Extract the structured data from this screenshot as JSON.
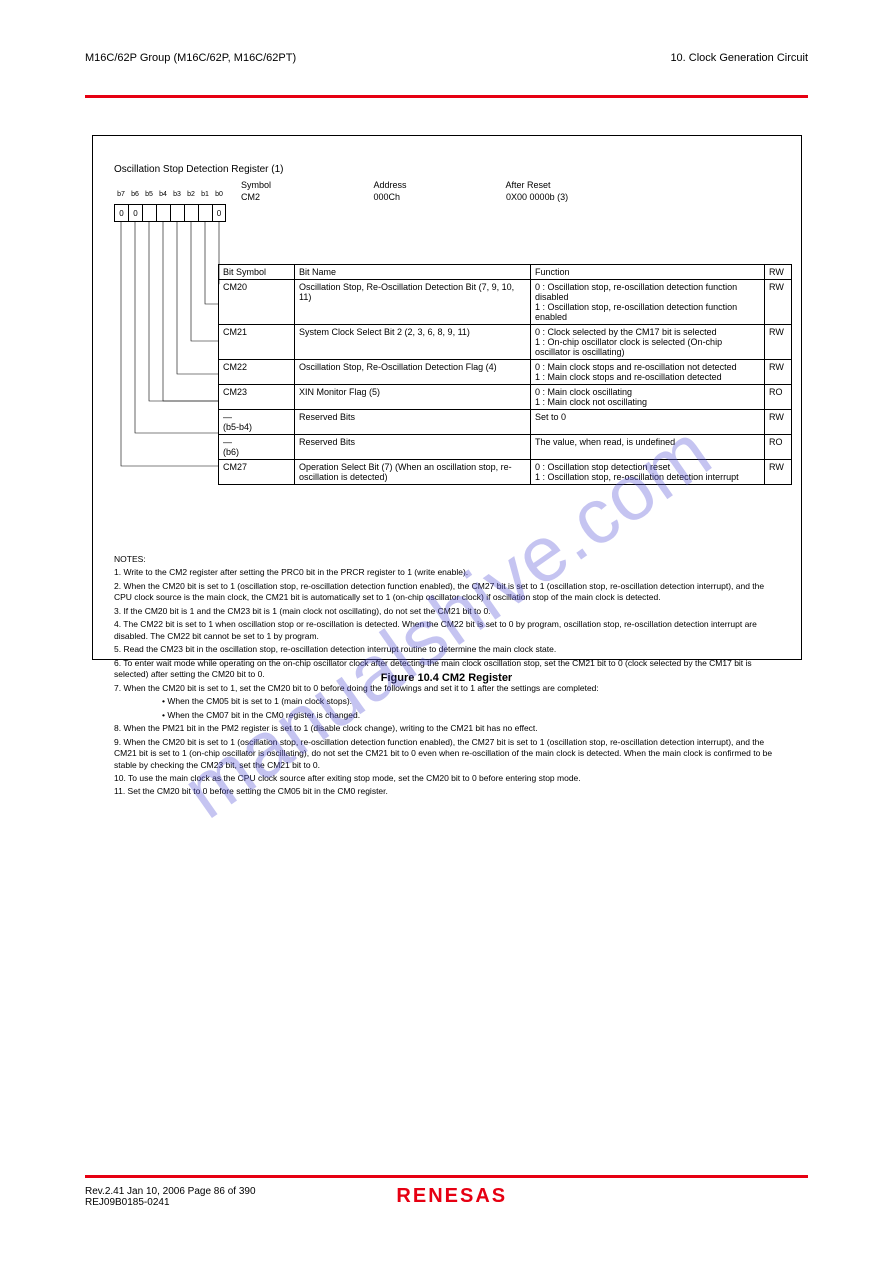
{
  "header": {
    "left": "M16C/62P Group (M16C/62P, M16C/62PT)",
    "right": "10. Clock Generation Circuit"
  },
  "colors": {
    "accent": "#e60012",
    "watermark": "rgba(88,86,214,0.35)",
    "border": "#000000",
    "bg": "#ffffff"
  },
  "watermark": "manualshive.com",
  "register": {
    "title": "Oscillation Stop Detection Register (1)",
    "bit_labels": [
      "b7",
      "b6",
      "b5",
      "b4",
      "b3",
      "b2",
      "b1",
      "b0"
    ],
    "bit_defaults": [
      "0",
      "0",
      "",
      "",
      "",
      "",
      "",
      "0"
    ],
    "header_row": {
      "symbol": "Symbol",
      "address": "Address",
      "after_reset": "After Reset",
      "symbol_val": "CM2",
      "address_val": "000Ch",
      "after_reset_val": "0X00 0000b (3)"
    },
    "columns": [
      "Bit Symbol",
      "Bit Name",
      "Function",
      "RW"
    ],
    "rows": [
      {
        "symbol": "CM20",
        "name": "Oscillation Stop, Re-Oscillation Detection Bit (7, 9, 10, 11)",
        "func": "0 : Oscillation stop, re-oscillation detection function disabled\n1 : Oscillation stop, re-oscillation detection function enabled",
        "rw": "RW"
      },
      {
        "symbol": "CM21",
        "name": "System Clock Select Bit 2 (2, 3, 6, 8, 9, 11)",
        "func": "0 : Clock selected by the CM17 bit is selected\n1 : On-chip oscillator clock is selected (On-chip oscillator is oscillating)",
        "rw": "RW"
      },
      {
        "symbol": "CM22",
        "name": "Oscillation Stop, Re-Oscillation Detection Flag (4)",
        "func": "0 : Main clock stops and re-oscillation not detected\n1 : Main clock stops and re-oscillation detected",
        "rw": "RW"
      },
      {
        "symbol": "CM23",
        "name": "XIN Monitor Flag (5)",
        "func": "0 : Main clock oscillating\n1 : Main clock not oscillating",
        "rw": "RO"
      },
      {
        "symbol": "—\n(b5-b4)",
        "name": "Reserved Bits",
        "func": "Set to 0",
        "rw": "RW"
      },
      {
        "symbol": "—\n(b6)",
        "name": "Reserved Bits",
        "func": "The value, when read, is undefined",
        "rw": "RO"
      },
      {
        "symbol": "CM27",
        "name": "Operation Select Bit (7) (When an oscillation stop, re-oscillation is detected)",
        "func": "0 : Oscillation stop detection reset\n1 : Oscillation stop, re-oscillation detection interrupt",
        "rw": "RW"
      }
    ],
    "notes": [
      "NOTES:",
      "1.   Write to the CM2 register after setting the PRC0 bit in the PRCR register to 1 (write enable).",
      "2.   When the CM20 bit is set to 1 (oscillation stop, re-oscillation detection function enabled), the CM27 bit is set to 1 (oscillation stop, re-oscillation detection interrupt), and the CPU clock source is the main clock, the CM21 bit is automatically set to 1 (on-chip oscillator clock) if oscillation stop of the main clock is detected.",
      "3.   If the CM20 bit is 1 and the CM23 bit is 1 (main clock not oscillating), do not set the CM21 bit to 0.",
      "4.   The CM22 bit is set to 1 when oscillation stop or re-oscillation is detected. When the CM22 bit is set to 0 by program, oscillation stop, re-oscillation detection interrupt are disabled. The CM22 bit cannot be set to 1 by program.",
      "5.   Read the CM23 bit in the oscillation stop, re-oscillation detection interrupt routine to determine the main clock state.",
      "6.   To enter wait mode while operating on the on-chip oscillator clock after detecting the main clock oscillation stop, set the CM21 bit to 0 (clock selected by the CM17 bit is selected) after setting the CM20 bit to 0.",
      "7.   When the CM20 bit is set to 1, set the CM20 bit to 0 before doing the followings and set it to 1 after the settings are completed:",
      "• When the CM05 bit is set to 1 (main clock stops).",
      "• When the CM07 bit in the CM0 register is changed.",
      "8.   When the PM21 bit in the PM2 register is set to 1 (disable clock change), writing to the CM21 bit has no effect.",
      "9.   When the CM20 bit is set to 1 (oscillation stop, re-oscillation detection function enabled), the CM27 bit is set to 1 (oscillation stop, re-oscillation detection interrupt), and the CM21 bit is set to 1 (on-chip oscillator is oscillating), do not set the CM21 bit to 0 even when re-oscillation of the main clock is detected. When the main clock is confirmed to be stable by checking the CM23 bit, set the CM21 bit to 0.",
      "10.  To use the main clock as the CPU clock source after exiting stop mode, set the CM20 bit to 0 before entering stop mode.",
      "11.  Set the CM20 bit to 0 before setting the CM05 bit in the CM0 register."
    ]
  },
  "figure_caption": "Figure 10.4    CM2 Register",
  "footer": {
    "left": "Rev.2.41  Jan 10, 2006  Page 86 of 390",
    "left2": "REJ09B0185-0241",
    "logo": "RENESAS"
  }
}
